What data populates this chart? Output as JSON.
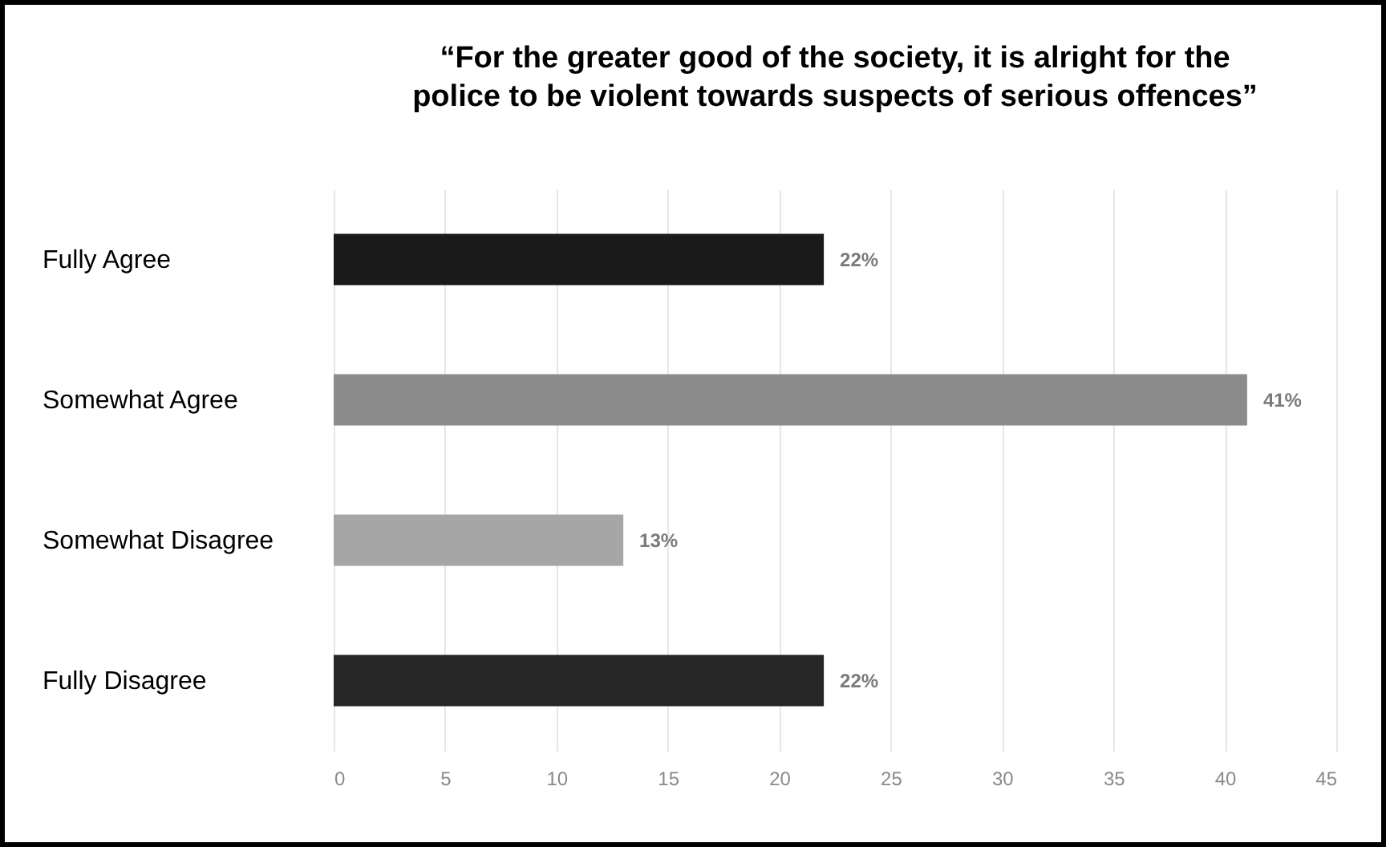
{
  "chart_data": {
    "type": "bar",
    "orientation": "horizontal",
    "title": "“For the greater good of the society, it is alright for the police to be violent towards suspects of serious offences”",
    "categories": [
      "Fully Agree",
      "Somewhat Agree",
      "Somewhat Disagree",
      "Fully Disagree"
    ],
    "values": [
      22,
      41,
      13,
      22
    ],
    "value_labels": [
      "22%",
      "41%",
      "13%",
      "22%"
    ],
    "colors": [
      "#1a1a1a",
      "#8c8c8c",
      "#a6a6a6",
      "#262626"
    ],
    "xlim": [
      0,
      45
    ],
    "xticks": [
      0,
      5,
      10,
      15,
      20,
      25,
      30,
      35,
      40,
      45
    ],
    "grid": "x"
  }
}
